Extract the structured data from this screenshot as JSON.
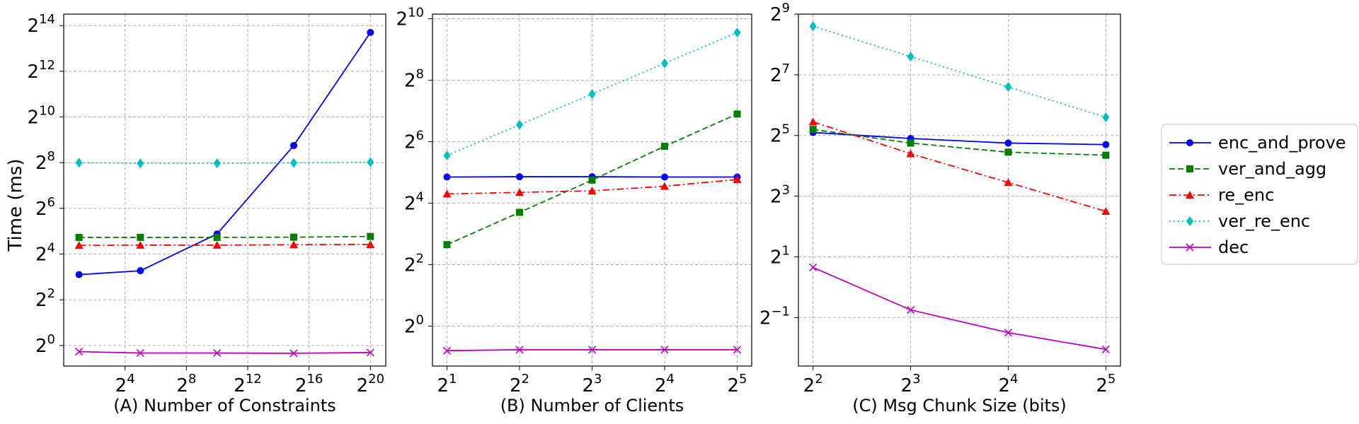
{
  "figure": {
    "ylabel": "Time (ms)",
    "y_scale": "log2",
    "legend_position": "right"
  },
  "legend": [
    {
      "name": "enc_and_prove",
      "color": "#0000ff",
      "marker": "circle",
      "linestyle": "solid"
    },
    {
      "name": "ver_and_agg",
      "color": "#008000",
      "marker": "square",
      "linestyle": "dashed"
    },
    {
      "name": "re_enc",
      "color": "#ff0000",
      "marker": "triangle",
      "linestyle": "dashdot"
    },
    {
      "name": "ver_re_enc",
      "color": "#00bfbf",
      "marker": "diamond",
      "linestyle": "dotted"
    },
    {
      "name": "dec",
      "color": "#bf00bf",
      "marker": "x",
      "linestyle": "solid"
    }
  ],
  "chart_data": [
    {
      "type": "line",
      "title": "(A) Number of Constraints",
      "xlabel": "(A) Number of Constraints",
      "ylabel": "Time (ms)",
      "x_scale": "log2",
      "y_scale": "log2",
      "x_exponents": [
        1,
        5,
        10,
        15,
        20
      ],
      "xlim_exp": [
        -0.0,
        21.0
      ],
      "ylim_exp": [
        -0.9,
        14.5
      ],
      "x_ticks": [
        {
          "base": "2",
          "exp": "4",
          "value": 4
        },
        {
          "base": "2",
          "exp": "8",
          "value": 8
        },
        {
          "base": "2",
          "exp": "12",
          "value": 12
        },
        {
          "base": "2",
          "exp": "16",
          "value": 16
        },
        {
          "base": "2",
          "exp": "20",
          "value": 20
        }
      ],
      "y_ticks": [
        {
          "base": "2",
          "exp": "0",
          "value": 0
        },
        {
          "base": "2",
          "exp": "2",
          "value": 2
        },
        {
          "base": "2",
          "exp": "4",
          "value": 4
        },
        {
          "base": "2",
          "exp": "6",
          "value": 6
        },
        {
          "base": "2",
          "exp": "8",
          "value": 8
        },
        {
          "base": "2",
          "exp": "10",
          "value": 10
        },
        {
          "base": "2",
          "exp": "12",
          "value": 12
        },
        {
          "base": "2",
          "exp": "14",
          "value": 14
        }
      ],
      "grid": true,
      "series": [
        {
          "name": "enc_and_prove",
          "y_exp": [
            3.1,
            3.27,
            4.88,
            8.75,
            13.7
          ]
        },
        {
          "name": "ver_and_agg",
          "y_exp": [
            4.73,
            4.73,
            4.73,
            4.74,
            4.77
          ]
        },
        {
          "name": "re_enc",
          "y_exp": [
            4.38,
            4.39,
            4.39,
            4.41,
            4.42
          ]
        },
        {
          "name": "ver_re_enc",
          "y_exp": [
            8.0,
            7.97,
            7.97,
            7.99,
            8.02
          ]
        },
        {
          "name": "dec",
          "y_exp": [
            -0.27,
            -0.33,
            -0.33,
            -0.34,
            -0.31
          ]
        }
      ]
    },
    {
      "type": "line",
      "title": "(B) Number of Clients",
      "xlabel": "(B) Number of Clients",
      "ylabel": "",
      "x_scale": "log2",
      "y_scale": "log2",
      "x_exponents": [
        1,
        2,
        3,
        4,
        5
      ],
      "xlim_exp": [
        0.8,
        5.2
      ],
      "ylim_exp": [
        -1.3,
        10.15
      ],
      "x_ticks": [
        {
          "base": "2",
          "exp": "1",
          "value": 1
        },
        {
          "base": "2",
          "exp": "2",
          "value": 2
        },
        {
          "base": "2",
          "exp": "3",
          "value": 3
        },
        {
          "base": "2",
          "exp": "4",
          "value": 4
        },
        {
          "base": "2",
          "exp": "5",
          "value": 5
        }
      ],
      "y_ticks": [
        {
          "base": "2",
          "exp": "0",
          "value": 0
        },
        {
          "base": "2",
          "exp": "2",
          "value": 2
        },
        {
          "base": "2",
          "exp": "4",
          "value": 4
        },
        {
          "base": "2",
          "exp": "6",
          "value": 6
        },
        {
          "base": "2",
          "exp": "8",
          "value": 8
        },
        {
          "base": "2",
          "exp": "10",
          "value": 10
        }
      ],
      "grid": true,
      "series": [
        {
          "name": "enc_and_prove",
          "y_exp": [
            4.85,
            4.86,
            4.86,
            4.85,
            4.85
          ]
        },
        {
          "name": "ver_and_agg",
          "y_exp": [
            2.65,
            3.7,
            4.75,
            5.85,
            6.9
          ]
        },
        {
          "name": "re_enc",
          "y_exp": [
            4.3,
            4.35,
            4.4,
            4.55,
            4.77
          ]
        },
        {
          "name": "ver_re_enc",
          "y_exp": [
            5.55,
            6.55,
            7.55,
            8.55,
            9.55
          ]
        },
        {
          "name": "dec",
          "y_exp": [
            -0.8,
            -0.77,
            -0.77,
            -0.77,
            -0.77
          ]
        }
      ]
    },
    {
      "type": "line",
      "title": "(C) Msg Chunk Size (bits)",
      "xlabel": "(C) Msg Chunk Size (bits)",
      "ylabel": "",
      "x_scale": "log2",
      "y_scale": "log2",
      "x_exponents": [
        2,
        3,
        4,
        5
      ],
      "xlim_exp": [
        1.85,
        5.15
      ],
      "ylim_exp": [
        -2.6,
        9.0
      ],
      "x_ticks": [
        {
          "base": "2",
          "exp": "2",
          "value": 2
        },
        {
          "base": "2",
          "exp": "3",
          "value": 3
        },
        {
          "base": "2",
          "exp": "4",
          "value": 4
        },
        {
          "base": "2",
          "exp": "5",
          "value": 5
        }
      ],
      "y_ticks": [
        {
          "base": "2",
          "exp": "−1",
          "value": -1
        },
        {
          "base": "2",
          "exp": "1",
          "value": 1
        },
        {
          "base": "2",
          "exp": "3",
          "value": 3
        },
        {
          "base": "2",
          "exp": "5",
          "value": 5
        },
        {
          "base": "2",
          "exp": "7",
          "value": 7
        },
        {
          "base": "2",
          "exp": "9",
          "value": 9
        }
      ],
      "grid": true,
      "series": [
        {
          "name": "enc_and_prove",
          "y_exp": [
            5.1,
            4.9,
            4.75,
            4.7
          ]
        },
        {
          "name": "ver_and_agg",
          "y_exp": [
            5.2,
            4.75,
            4.45,
            4.35
          ]
        },
        {
          "name": "re_enc",
          "y_exp": [
            5.45,
            4.4,
            3.45,
            2.5
          ]
        },
        {
          "name": "ver_re_enc",
          "y_exp": [
            8.6,
            7.6,
            6.6,
            5.6
          ]
        },
        {
          "name": "dec",
          "y_exp": [
            0.65,
            -0.75,
            -1.5,
            -2.05
          ]
        }
      ]
    }
  ]
}
